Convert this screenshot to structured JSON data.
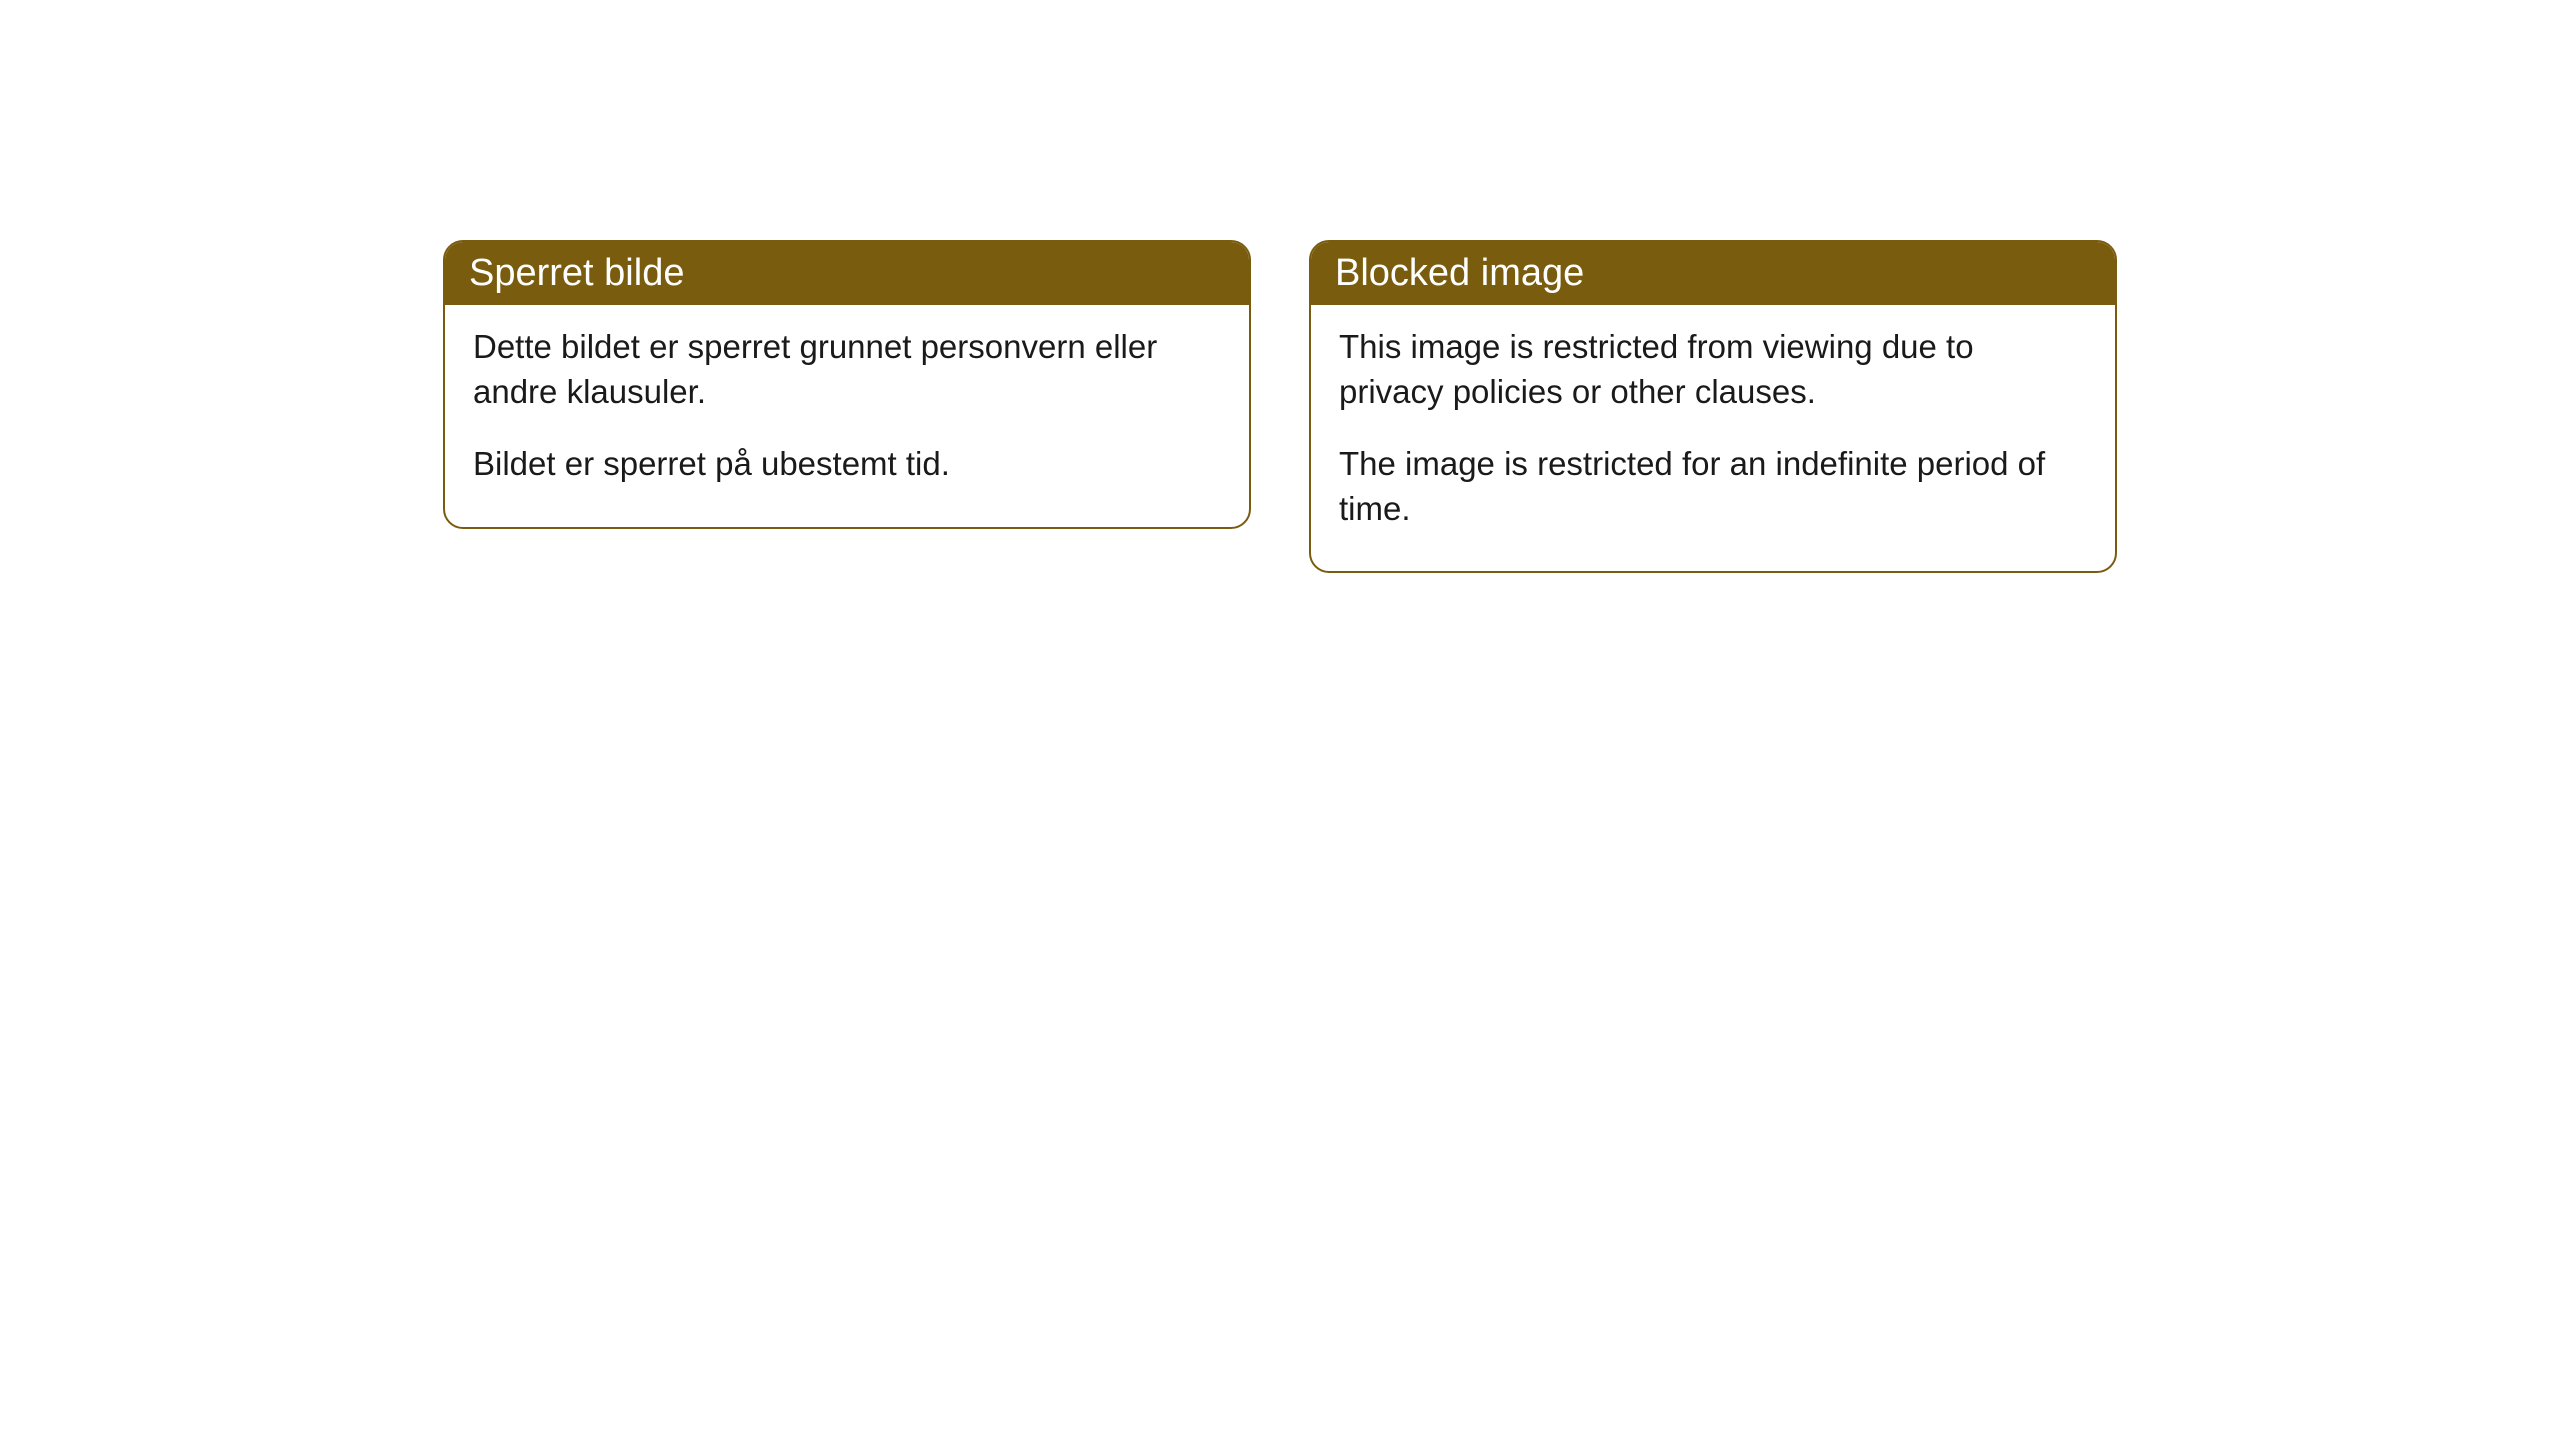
{
  "cards": [
    {
      "title": "Sperret bilde",
      "paragraph1": "Dette bildet er sperret grunnet personvern eller andre klausuler.",
      "paragraph2": "Bildet er sperret på ubestemt tid."
    },
    {
      "title": "Blocked image",
      "paragraph1": "This image is restricted from viewing due to privacy policies or other clauses.",
      "paragraph2": "The image is restricted for an indefinite period of time."
    }
  ],
  "style": {
    "header_bg": "#7a5c0f",
    "header_color": "#ffffff",
    "border_color": "#7a5c0f",
    "body_text_color": "#1a1a1a",
    "background_color": "#ffffff",
    "border_radius": 20,
    "header_fontsize": 38,
    "body_fontsize": 33
  }
}
